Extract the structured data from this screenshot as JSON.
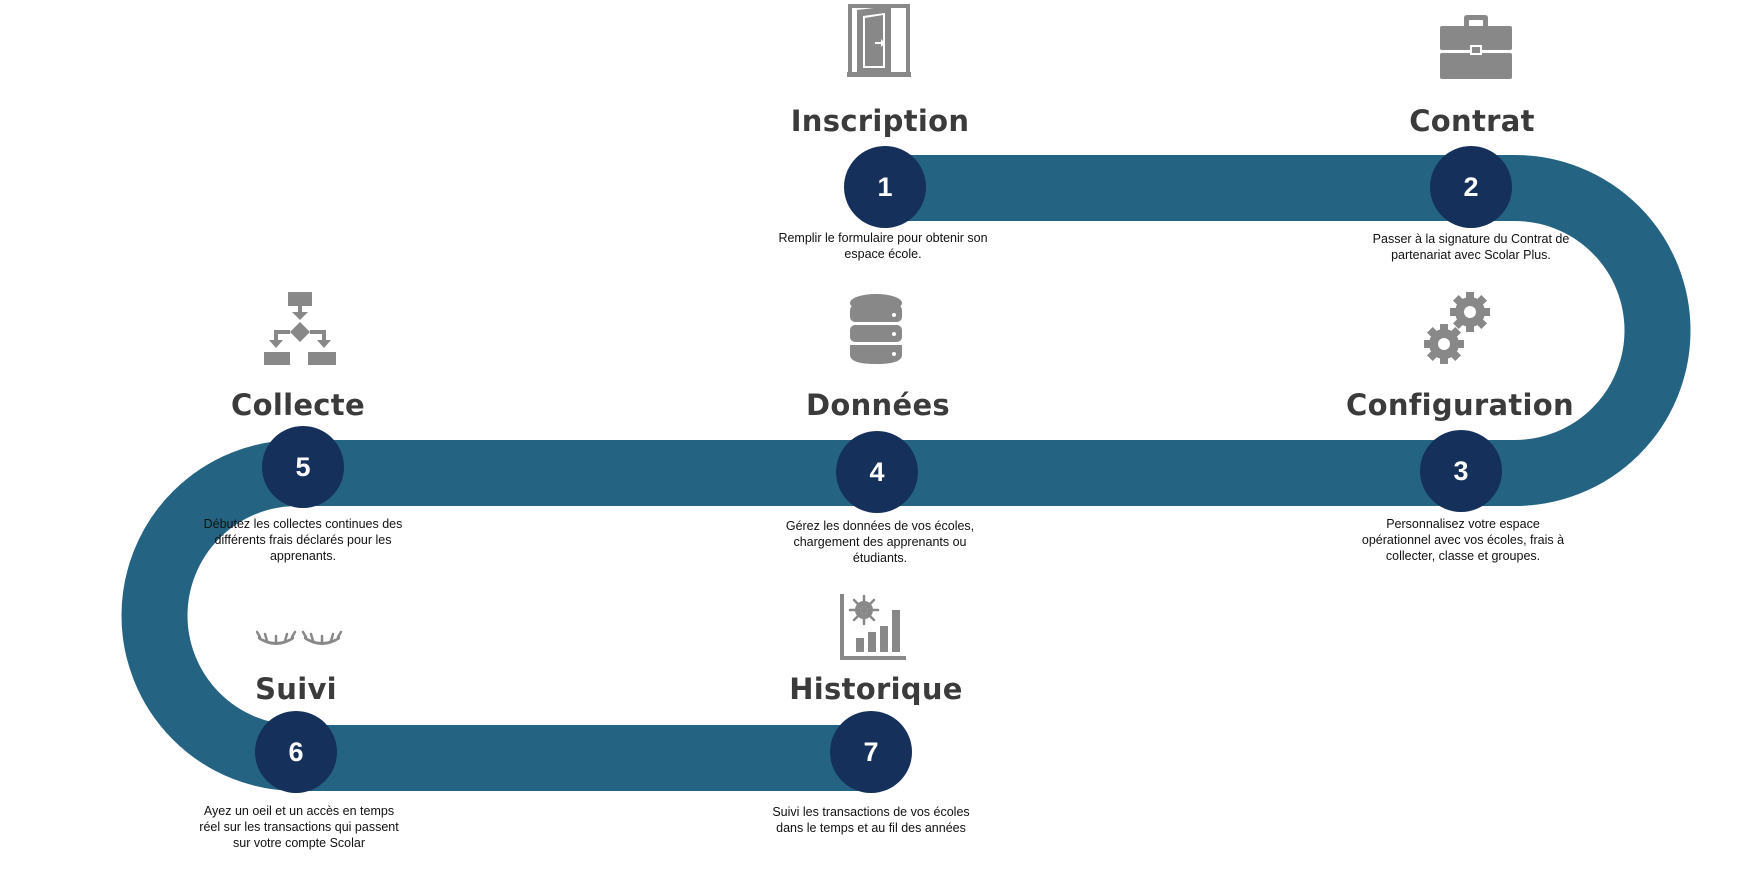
{
  "colors": {
    "track": "#246482",
    "circle": "#15305a",
    "icon": "#888888"
  },
  "steps": [
    {
      "number": "1",
      "title": "Inscription",
      "icon": "door-icon",
      "description": "Remplir le formulaire pour obtenir son espace école."
    },
    {
      "number": "2",
      "title": "Contrat",
      "icon": "briefcase-icon",
      "description": "Passer à la signature du Contrat de partenariat avec Scolar Plus."
    },
    {
      "number": "3",
      "title": "Configuration",
      "icon": "gears-icon",
      "description": "Personnalisez votre espace opérationnel avec vos écoles, frais à collecter, classe et groupes."
    },
    {
      "number": "4",
      "title": "Données",
      "icon": "database-icon",
      "description": "Gérez les données de vos écoles, chargement des apprenants ou étudiants."
    },
    {
      "number": "5",
      "title": "Collecte",
      "icon": "flowchart-icon",
      "description": "Débutez les collectes continues des différents frais déclarés pour les apprenants."
    },
    {
      "number": "6",
      "title": "Suivi",
      "icon": "eyes-icon",
      "description": "Ayez un oeil et un accès en temps réel sur les transactions qui passent sur votre compte Scolar"
    },
    {
      "number": "7",
      "title": "Historique",
      "icon": "chart-icon",
      "description": "Suivi les transactions de vos écoles dans le temps et au fil des années"
    }
  ]
}
